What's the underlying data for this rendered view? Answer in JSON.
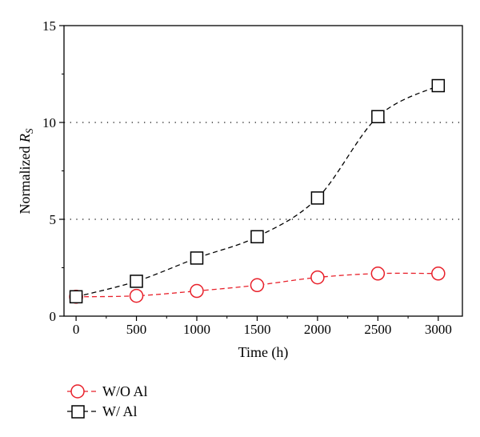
{
  "chart_data": {
    "type": "line",
    "xlabel": "Time (h)",
    "ylabel_prefix": "Normalized ",
    "ylabel_symbol": "R",
    "ylabel_subscript": "S",
    "xlim": [
      -100,
      3200
    ],
    "ylim": [
      0,
      15
    ],
    "x_ticks": [
      0,
      500,
      1000,
      1500,
      2000,
      2500,
      3000
    ],
    "y_ticks": [
      0,
      5,
      10,
      15
    ],
    "grid": {
      "horizontal_dotted_at": [
        5,
        10
      ]
    },
    "legend_position": "bottom-left, below plot",
    "series": [
      {
        "name": "W/O Al",
        "marker": "circle",
        "line_style": "dashed",
        "color": "#e8202a",
        "x": [
          0,
          500,
          1000,
          1500,
          2000,
          2500,
          3000
        ],
        "y": [
          1.0,
          1.05,
          1.3,
          1.6,
          2.0,
          2.2,
          2.2
        ]
      },
      {
        "name": "W/ Al",
        "marker": "square",
        "line_style": "dashed",
        "color": "#000000",
        "x": [
          0,
          500,
          1000,
          1500,
          2000,
          2500,
          3000
        ],
        "y": [
          1.0,
          1.8,
          3.0,
          4.1,
          6.1,
          10.3,
          11.9
        ]
      }
    ]
  }
}
